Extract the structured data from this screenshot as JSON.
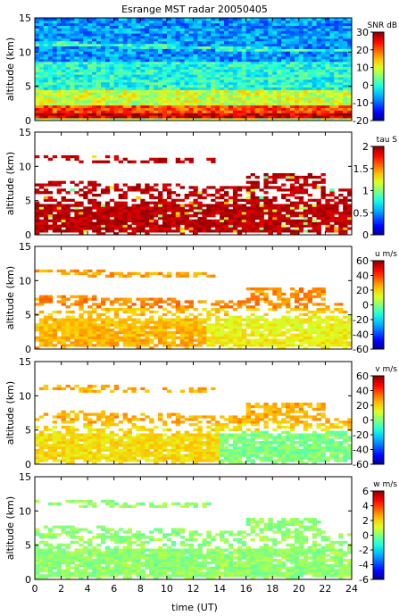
{
  "title": "Esrange MST radar 20050405",
  "xlabel": "time (UT)",
  "colors": {
    "jet": [
      "#00008f",
      "#0000ff",
      "#0060ff",
      "#00bfff",
      "#20ffdf",
      "#80ff80",
      "#dfff20",
      "#ffbf00",
      "#ff6000",
      "#ff0000",
      "#8f0000"
    ],
    "frame": "#000000",
    "background": "#ffffff"
  },
  "chart_data": [
    {
      "type": "heatmap",
      "title": "Esrange MST radar 20050405",
      "xlabel": "",
      "ylabel": "altitude (km)",
      "xlim": [
        0,
        24
      ],
      "ylim": [
        0,
        15
      ],
      "x_ticks": [],
      "y_ticks": [
        0,
        5,
        10,
        15
      ],
      "colorbar": {
        "label": "SNR dB",
        "range": [
          -20,
          30
        ],
        "ticks": [
          -20,
          -10,
          0,
          10,
          20,
          30
        ]
      },
      "variable": "snr"
    },
    {
      "type": "heatmap",
      "xlabel": "",
      "ylabel": "altitude (km)",
      "xlim": [
        0,
        24
      ],
      "ylim": [
        0,
        15
      ],
      "x_ticks": [],
      "y_ticks": [
        0,
        5,
        10,
        15
      ],
      "colorbar": {
        "label": "tau S",
        "range": [
          0,
          2
        ],
        "ticks": [
          0,
          0.5,
          1,
          1.5,
          2
        ]
      },
      "variable": "tau"
    },
    {
      "type": "heatmap",
      "xlabel": "",
      "ylabel": "altitude (km)",
      "xlim": [
        0,
        24
      ],
      "ylim": [
        0,
        15
      ],
      "x_ticks": [],
      "y_ticks": [
        0,
        5,
        10,
        15
      ],
      "colorbar": {
        "label": "u m/s",
        "range": [
          -60,
          60
        ],
        "ticks": [
          -60,
          -40,
          -20,
          0,
          20,
          40,
          60
        ]
      },
      "variable": "u"
    },
    {
      "type": "heatmap",
      "xlabel": "",
      "ylabel": "altitude (km)",
      "xlim": [
        0,
        24
      ],
      "ylim": [
        0,
        15
      ],
      "x_ticks": [],
      "y_ticks": [
        0,
        5,
        10,
        15
      ],
      "colorbar": {
        "label": "v m/s",
        "range": [
          -60,
          60
        ],
        "ticks": [
          -60,
          -40,
          -20,
          0,
          20,
          40,
          60
        ]
      },
      "variable": "v"
    },
    {
      "type": "heatmap",
      "xlabel": "time (UT)",
      "ylabel": "altitude (km)",
      "xlim": [
        0,
        24
      ],
      "ylim": [
        0,
        15
      ],
      "x_ticks": [
        0,
        2,
        4,
        6,
        8,
        10,
        12,
        14,
        16,
        18,
        20,
        22,
        24
      ],
      "y_ticks": [
        0,
        5,
        10,
        15
      ],
      "colorbar": {
        "label": "w m/s",
        "range": [
          -6,
          6
        ],
        "ticks": [
          -6,
          -4,
          -2,
          0,
          2,
          4,
          6
        ]
      },
      "variable": "w"
    }
  ]
}
